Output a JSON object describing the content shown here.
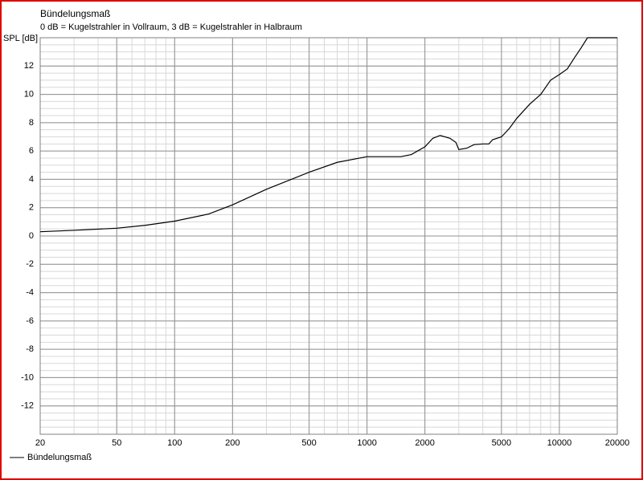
{
  "chart_data": {
    "type": "line",
    "title": "Bündelungsmaß",
    "subtitle": "0 dB = Kugelstrahler in Vollraum, 3 dB = Kugelstrahler in Halbraum",
    "y_label": "SPL [dB]",
    "log_x": true,
    "grid": true,
    "xlim": [
      20,
      20000
    ],
    "xticks": [
      20,
      50,
      100,
      200,
      500,
      1000,
      2000,
      5000,
      10000,
      20000
    ],
    "ylim": [
      -14,
      14
    ],
    "yticks": [
      -12,
      -10,
      -8,
      -6,
      -4,
      -2,
      0,
      2,
      4,
      6,
      8,
      10,
      12
    ],
    "x": [
      20,
      30,
      50,
      70,
      100,
      150,
      200,
      300,
      500,
      700,
      1000,
      1500,
      1700,
      2000,
      2200,
      2400,
      2700,
      2900,
      3000,
      3300,
      3600,
      4000,
      4300,
      4500,
      5000,
      5500,
      6000,
      7000,
      8000,
      9000,
      10000,
      11000,
      12000,
      13000,
      14000,
      20000
    ],
    "series": [
      {
        "name": "Bündelungsmaß",
        "color": "#000000",
        "values": [
          0.3,
          0.4,
          0.55,
          0.75,
          1.05,
          1.55,
          2.2,
          3.3,
          4.5,
          5.2,
          5.6,
          5.6,
          5.75,
          6.3,
          6.9,
          7.1,
          6.9,
          6.6,
          6.1,
          6.2,
          6.45,
          6.5,
          6.5,
          6.8,
          7.0,
          7.6,
          8.3,
          9.3,
          10.0,
          11.0,
          11.4,
          11.8,
          12.6,
          13.3,
          14.0,
          14.0
        ]
      }
    ]
  }
}
